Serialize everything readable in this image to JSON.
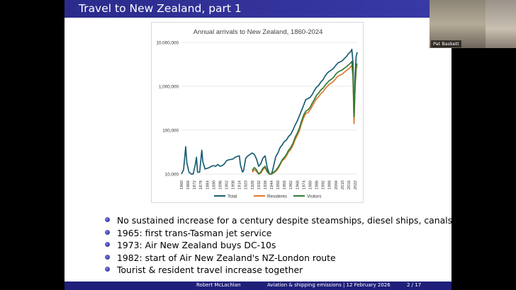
{
  "slide": {
    "title": "Travel to New Zealand, part 1",
    "bullets": [
      "No sustained increase for a century despite steamships, diesel ships, canals",
      "1965: first trans-Tasman jet service",
      "1973: Air New Zealand buys DC-10s",
      "1982: start of Air New Zealand's NZ-London route",
      "Tourist & resident travel increase together"
    ],
    "footer": {
      "author": "Robert McLachlan",
      "talk": "Aviation & shipping emissions | 12 February 2026",
      "page": "2 / 17"
    }
  },
  "video": {
    "participant_name": "Pat Baskett"
  },
  "chart_data": {
    "type": "line",
    "title": "Annual arrivals to New Zealand, 1860-2024",
    "y_scale": "log",
    "ylim": [
      10000,
      10000000
    ],
    "xlim": [
      1860,
      2024
    ],
    "y_ticks": [
      "10,000,000",
      "1,000,000",
      "100,000",
      "10,000"
    ],
    "y_tick_values": [
      10000000,
      1000000,
      100000,
      10000
    ],
    "x_ticks": [
      "1860",
      "1866",
      "1872",
      "1878",
      "1884",
      "1890",
      "1896",
      "1902",
      "1908",
      "1914",
      "1920",
      "1926",
      "1932",
      "1938",
      "1944",
      "1950",
      "1956",
      "1962",
      "1968",
      "1974",
      "1980",
      "1986",
      "1992",
      "1998",
      "2004",
      "2010",
      "2016",
      "2022"
    ],
    "legend_position": "bottom",
    "grid": "horizontal",
    "series": [
      {
        "name": "Total",
        "color": "#1b5e74",
        "x": [
          1860,
          1862,
          1864,
          1865,
          1867,
          1869,
          1871,
          1873,
          1874,
          1875,
          1877,
          1879,
          1880,
          1882,
          1884,
          1886,
          1888,
          1890,
          1892,
          1894,
          1896,
          1898,
          1900,
          1902,
          1904,
          1906,
          1908,
          1910,
          1912,
          1914,
          1915,
          1917,
          1918,
          1920,
          1922,
          1924,
          1926,
          1928,
          1930,
          1932,
          1934,
          1936,
          1938,
          1940,
          1942,
          1944,
          1945,
          1948,
          1950,
          1952,
          1954,
          1956,
          1958,
          1960,
          1962,
          1964,
          1966,
          1968,
          1970,
          1972,
          1974,
          1976,
          1978,
          1980,
          1982,
          1984,
          1986,
          1988,
          1990,
          1992,
          1994,
          1996,
          1998,
          2000,
          2002,
          2004,
          2006,
          2008,
          2010,
          2012,
          2014,
          2016,
          2018,
          2019,
          2020,
          2021,
          2022,
          2023,
          2024
        ],
        "y": [
          10000,
          12500,
          42000,
          18000,
          11000,
          10000,
          10000,
          17000,
          24000,
          11000,
          11000,
          35000,
          19000,
          13000,
          13500,
          14000,
          15000,
          15500,
          15000,
          16500,
          15000,
          15500,
          17000,
          20000,
          21000,
          21500,
          22000,
          24000,
          25000,
          26000,
          16000,
          11000,
          12000,
          23000,
          26000,
          28000,
          30000,
          28000,
          22000,
          15000,
          17000,
          23000,
          26000,
          14000,
          10000,
          10000,
          12000,
          25000,
          30000,
          40000,
          46000,
          55000,
          60000,
          72000,
          80000,
          100000,
          130000,
          160000,
          210000,
          280000,
          370000,
          500000,
          520000,
          560000,
          650000,
          800000,
          950000,
          1050000,
          1250000,
          1400000,
          1700000,
          2000000,
          2200000,
          2350000,
          2600000,
          3000000,
          3400000,
          3600000,
          3800000,
          4300000,
          4800000,
          5600000,
          6200000,
          7000000,
          3500000,
          170000,
          1900000,
          4800000,
          6000000
        ]
      },
      {
        "name": "Residents",
        "color": "#e07a33",
        "x": [
          1926,
          1928,
          1930,
          1932,
          1934,
          1936,
          1938,
          1940,
          1942,
          1944,
          1946,
          1948,
          1950,
          1952,
          1954,
          1956,
          1958,
          1960,
          1962,
          1964,
          1966,
          1968,
          1970,
          1972,
          1974,
          1976,
          1978,
          1980,
          1982,
          1984,
          1986,
          1988,
          1990,
          1992,
          1994,
          1996,
          1998,
          2000,
          2002,
          2004,
          2006,
          2008,
          2010,
          2012,
          2014,
          2016,
          2018,
          2019,
          2020,
          2021,
          2022,
          2023,
          2024
        ],
        "y": [
          11000,
          12500,
          11500,
          10000,
          10500,
          12500,
          14000,
          11000,
          10000,
          10000,
          10500,
          11500,
          13000,
          16000,
          20000,
          22000,
          26000,
          32000,
          36000,
          45000,
          60000,
          75000,
          95000,
          140000,
          190000,
          240000,
          250000,
          290000,
          350000,
          430000,
          520000,
          580000,
          680000,
          740000,
          880000,
          1000000,
          1100000,
          1200000,
          1300000,
          1500000,
          1700000,
          1800000,
          1900000,
          2100000,
          2300000,
          2500000,
          2800000,
          3000000,
          1600000,
          140000,
          900000,
          2500000,
          2900000
        ]
      },
      {
        "name": "Visitors",
        "color": "#2e7d32",
        "x": [
          1926,
          1928,
          1930,
          1932,
          1934,
          1936,
          1938,
          1940,
          1942,
          1944,
          1946,
          1948,
          1950,
          1952,
          1954,
          1956,
          1958,
          1960,
          1962,
          1964,
          1966,
          1968,
          1970,
          1972,
          1974,
          1976,
          1978,
          1980,
          1982,
          1984,
          1986,
          1988,
          1990,
          1992,
          1994,
          1996,
          1998,
          2000,
          2002,
          2004,
          2006,
          2008,
          2010,
          2012,
          2014,
          2016,
          2018,
          2019,
          2020,
          2021,
          2022,
          2023,
          2024
        ],
        "y": [
          12000,
          14000,
          12500,
          10000,
          11000,
          13500,
          15000,
          11500,
          10000,
          10000,
          11000,
          12000,
          14000,
          17000,
          21000,
          24000,
          28000,
          35000,
          40000,
          50000,
          68000,
          85000,
          110000,
          160000,
          220000,
          270000,
          290000,
          330000,
          410000,
          500000,
          620000,
          700000,
          820000,
          900000,
          1050000,
          1200000,
          1350000,
          1450000,
          1600000,
          1900000,
          2100000,
          2250000,
          2350000,
          2600000,
          2800000,
          3100000,
          3400000,
          3700000,
          1900000,
          200000,
          1100000,
          2900000,
          3300000
        ]
      }
    ]
  }
}
